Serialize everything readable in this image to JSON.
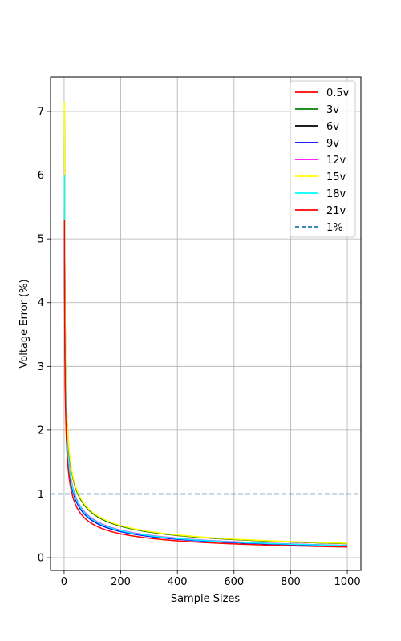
{
  "chart_data": {
    "type": "line",
    "title": "",
    "xlabel": "Sample Sizes",
    "ylabel": "Voltage Error (%)",
    "xlim": [
      -48,
      1048
    ],
    "ylim": [
      -0.2,
      7.54
    ],
    "xticks": [
      0,
      200,
      400,
      600,
      800,
      1000
    ],
    "yticks": [
      0,
      1,
      2,
      3,
      4,
      5,
      6,
      7
    ],
    "grid": true,
    "legend_position": "upper right",
    "curve_model": "error = k / sqrt(n), n = 1..1000",
    "series": [
      {
        "name": "0.5v",
        "color": "#ff0000",
        "style": "solid",
        "values_at_n": {
          "1": 7.0,
          "10": 2.21,
          "50": 0.99,
          "100": 0.7,
          "400": 0.35,
          "1000": 0.22
        }
      },
      {
        "name": "3v",
        "color": "#008000",
        "style": "solid",
        "values_at_n": {
          "1": 7.0,
          "10": 2.21,
          "50": 0.99,
          "100": 0.7,
          "400": 0.35,
          "1000": 0.22
        }
      },
      {
        "name": "6v",
        "color": "#000000",
        "style": "solid",
        "values_at_n": {
          "1": 5.9,
          "10": 1.87,
          "50": 0.83,
          "100": 0.59,
          "400": 0.3,
          "1000": 0.19
        }
      },
      {
        "name": "9v",
        "color": "#0000ff",
        "style": "solid",
        "values_at_n": {
          "1": 5.8,
          "10": 1.83,
          "50": 0.82,
          "100": 0.58,
          "400": 0.29,
          "1000": 0.18
        }
      },
      {
        "name": "12v",
        "color": "#ff00ff",
        "style": "solid",
        "values_at_n": {
          "1": 6.1,
          "10": 1.93,
          "50": 0.86,
          "100": 0.61,
          "400": 0.31,
          "1000": 0.19
        }
      },
      {
        "name": "15v",
        "color": "#ffff00",
        "style": "solid",
        "values_at_n": {
          "1": 7.15,
          "10": 2.26,
          "50": 1.01,
          "100": 0.72,
          "400": 0.36,
          "1000": 0.23
        }
      },
      {
        "name": "18v",
        "color": "#00ffff",
        "style": "solid",
        "values_at_n": {
          "1": 6.0,
          "10": 1.9,
          "50": 0.85,
          "100": 0.6,
          "400": 0.3,
          "1000": 0.19
        }
      },
      {
        "name": "21v",
        "color": "#ff0000",
        "style": "solid",
        "values_at_n": {
          "1": 5.3,
          "10": 1.68,
          "50": 0.75,
          "100": 0.53,
          "400": 0.27,
          "1000": 0.17
        }
      },
      {
        "name": "1%",
        "color": "#1f77b4",
        "style": "dashed",
        "constant": 1.0
      }
    ]
  }
}
